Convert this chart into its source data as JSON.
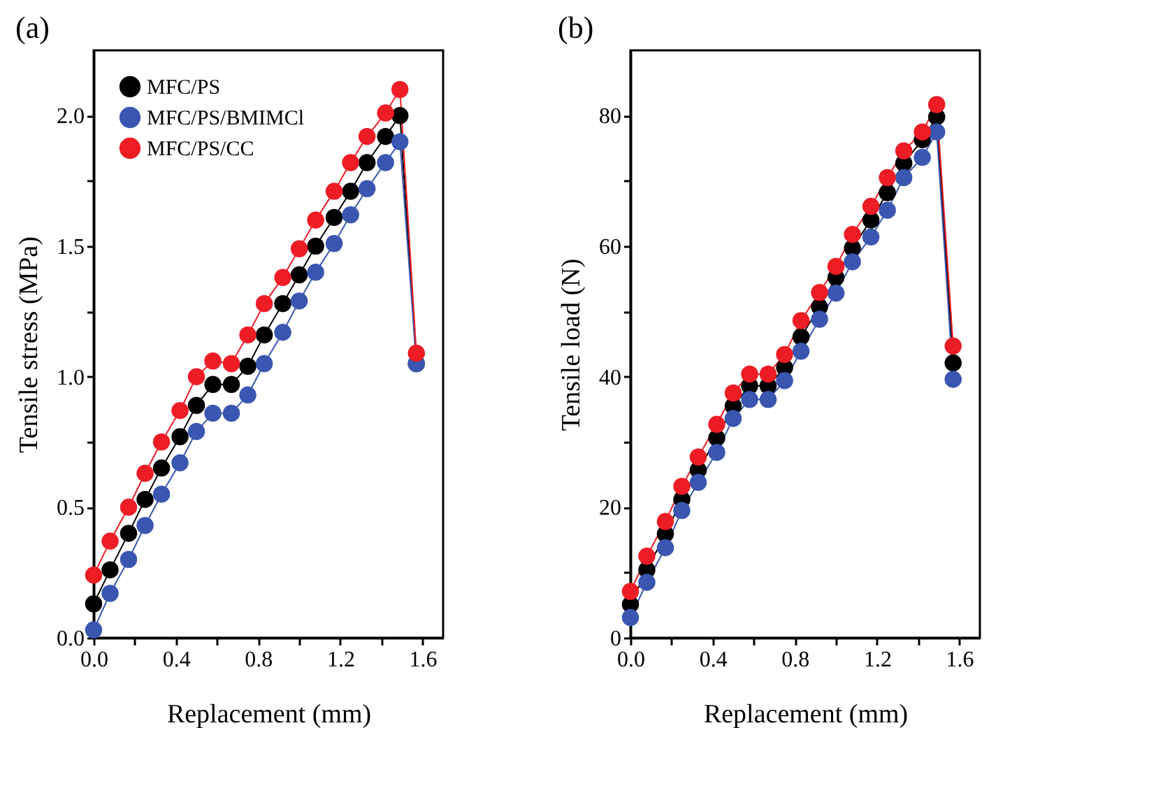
{
  "chart_data": [
    {
      "type": "line",
      "title": "(a)",
      "xlabel": "Replacement (mm)",
      "ylabel": "Tensile stress (MPa)",
      "marker": "circle",
      "line_style": "solid",
      "legend": "top left",
      "grid": false,
      "x": [
        0,
        0.08,
        0.17,
        0.25,
        0.33,
        0.42,
        0.5,
        0.58,
        0.67,
        0.75,
        0.83,
        0.92,
        1.0,
        1.08,
        1.17,
        1.25,
        1.33,
        1.42,
        1.49,
        1.57
      ],
      "xlim": [
        0,
        1.7
      ],
      "xticks": [
        {
          "value": 0,
          "label": "0.0"
        },
        {
          "value": 0.2,
          "label": null
        },
        {
          "value": 0.4,
          "label": "0.4"
        },
        {
          "value": 0.6,
          "label": null
        },
        {
          "value": 0.8,
          "label": "0.8"
        },
        {
          "value": 1.0,
          "label": null
        },
        {
          "value": 1.2,
          "label": "1.2"
        },
        {
          "value": 1.4,
          "label": null
        },
        {
          "value": 1.6,
          "label": "1.6"
        }
      ],
      "ylim": [
        0,
        2.25
      ],
      "yticks": [
        {
          "value": 0,
          "label": "0.0"
        },
        {
          "value": 0.25,
          "label": null
        },
        {
          "value": 0.5,
          "label": "0.5"
        },
        {
          "value": 0.75,
          "label": null
        },
        {
          "value": 1.0,
          "label": "1.0"
        },
        {
          "value": 1.25,
          "label": null
        },
        {
          "value": 1.5,
          "label": "1.5"
        },
        {
          "value": 1.75,
          "label": null
        },
        {
          "value": 2.0,
          "label": "2.0"
        }
      ],
      "series": [
        {
          "name": "MFC/PS",
          "color": "#000000",
          "values": [
            0.13,
            0.26,
            0.4,
            0.53,
            0.65,
            0.77,
            0.89,
            0.97,
            0.97,
            1.04,
            1.16,
            1.28,
            1.39,
            1.5,
            1.61,
            1.71,
            1.82,
            1.92,
            2.0,
            1.05
          ]
        },
        {
          "name": "MFC/PS/BMIMCl",
          "color": "#3a56b0",
          "values": [
            0.03,
            0.17,
            0.3,
            0.43,
            0.55,
            0.67,
            0.79,
            0.86,
            0.86,
            0.93,
            1.05,
            1.17,
            1.29,
            1.4,
            1.51,
            1.62,
            1.72,
            1.82,
            1.9,
            1.05
          ]
        },
        {
          "name": "MFC/PS/CC",
          "color": "#ee1c25",
          "values": [
            0.24,
            0.37,
            0.5,
            0.63,
            0.75,
            0.87,
            1.0,
            1.06,
            1.05,
            1.16,
            1.28,
            1.38,
            1.49,
            1.6,
            1.71,
            1.82,
            1.92,
            2.01,
            2.1,
            1.09
          ]
        }
      ]
    },
    {
      "type": "line",
      "title": "(b)",
      "xlabel": "Replacement (mm)",
      "ylabel": "Tensile load (N)",
      "marker": "circle",
      "line_style": "solid",
      "legend": "top left",
      "grid": false,
      "x": [
        0,
        0.08,
        0.17,
        0.25,
        0.33,
        0.42,
        0.5,
        0.58,
        0.67,
        0.75,
        0.83,
        0.92,
        1.0,
        1.08,
        1.17,
        1.25,
        1.33,
        1.42,
        1.49,
        1.57
      ],
      "xlim": [
        0,
        1.7
      ],
      "xticks": [
        {
          "value": 0,
          "label": "0.0"
        },
        {
          "value": 0.2,
          "label": null
        },
        {
          "value": 0.4,
          "label": "0.4"
        },
        {
          "value": 0.6,
          "label": null
        },
        {
          "value": 0.8,
          "label": "0.8"
        },
        {
          "value": 1.0,
          "label": null
        },
        {
          "value": 1.2,
          "label": "1.2"
        },
        {
          "value": 1.4,
          "label": null
        },
        {
          "value": 1.6,
          "label": "1.6"
        }
      ],
      "ylim": [
        0,
        90
      ],
      "yticks": [
        0,
        {
          "value": 10,
          "label": null
        },
        20,
        {
          "value": 30,
          "label": null
        },
        40,
        {
          "value": 50,
          "label": null
        },
        60,
        {
          "value": 70,
          "label": null
        },
        80
      ],
      "series": [
        {
          "name": "MFC/PS",
          "color": "#000000",
          "values": [
            5.1,
            10.4,
            15.9,
            21.2,
            25.7,
            30.6,
            35.5,
            38.6,
            38.6,
            41.4,
            46.1,
            50.7,
            55.2,
            59.7,
            64.0,
            68.2,
            72.7,
            76.3,
            79.8,
            42.1
          ]
        },
        {
          "name": "MFC/PS/BMIMCl",
          "color": "#3a56b0",
          "values": [
            3.1,
            8.5,
            13.8,
            19.5,
            23.8,
            28.4,
            33.6,
            36.5,
            36.5,
            39.4,
            43.9,
            48.8,
            52.8,
            57.6,
            61.4,
            65.5,
            70.5,
            73.6,
            77.5,
            39.6
          ]
        },
        {
          "name": "MFC/PS/CC",
          "color": "#ee1c25",
          "values": [
            7.1,
            12.5,
            17.8,
            23.2,
            27.7,
            32.7,
            37.5,
            40.4,
            40.4,
            43.4,
            48.6,
            52.9,
            56.9,
            61.8,
            66.1,
            70.5,
            74.6,
            77.5,
            81.7,
            44.7
          ]
        }
      ]
    }
  ]
}
